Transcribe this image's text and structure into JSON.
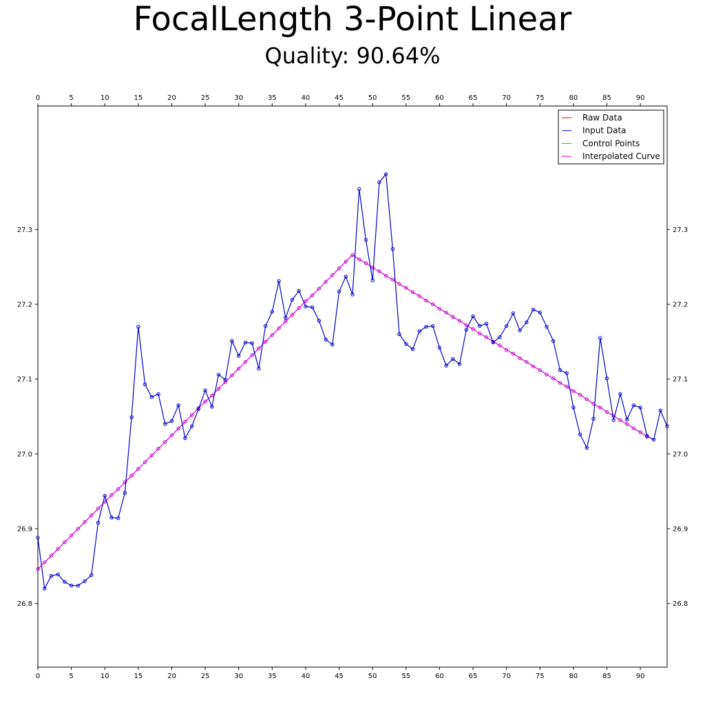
{
  "chart_data": {
    "type": "line",
    "title": "FocalLength 3-Point Linear",
    "subtitle": "Quality: 90.64%",
    "xlim": [
      0,
      94
    ],
    "ylim": [
      26.715,
      27.465
    ],
    "x_ticks": [
      0,
      5,
      10,
      15,
      20,
      25,
      30,
      35,
      40,
      45,
      50,
      55,
      60,
      65,
      70,
      75,
      80,
      85,
      90
    ],
    "y_ticks": [
      26.8,
      26.9,
      27.0,
      27.1,
      27.2,
      27.3
    ],
    "y_tick_labels": [
      "26.8",
      "26.9",
      "27.0",
      "27.1",
      "27.2",
      "27.3"
    ],
    "grid": false,
    "legend": {
      "placement": "top-right",
      "entries": [
        {
          "label": "Raw Data",
          "color": "#cc0000"
        },
        {
          "label": "Input Data",
          "color": "#0000cc"
        },
        {
          "label": "Control Points",
          "color": "#00cc00"
        },
        {
          "label": "Interpolated Curve",
          "color": "#cc00cc"
        }
      ]
    },
    "series": [
      {
        "name": "Input Data",
        "color": "#0000cc",
        "values": [
          26.888,
          26.82,
          26.837,
          26.839,
          26.829,
          26.824,
          26.824,
          26.83,
          26.838,
          26.908,
          26.944,
          26.915,
          26.914,
          26.948,
          27.049,
          27.17,
          27.093,
          27.076,
          27.08,
          27.04,
          27.044,
          27.065,
          27.021,
          27.037,
          27.06,
          27.085,
          27.063,
          27.106,
          27.099,
          27.151,
          27.131,
          27.149,
          27.148,
          27.114,
          27.171,
          27.19,
          27.231,
          27.182,
          27.206,
          27.218,
          27.197,
          27.196,
          27.178,
          27.153,
          27.146,
          27.217,
          27.237,
          27.213,
          27.354,
          27.286,
          27.232,
          27.363,
          27.374,
          27.274,
          27.16,
          27.147,
          27.14,
          27.164,
          27.17,
          27.171,
          27.142,
          27.118,
          27.127,
          27.12,
          27.166,
          27.184,
          27.171,
          27.174,
          27.149,
          27.156,
          27.171,
          27.188,
          27.165,
          27.176,
          27.193,
          27.189,
          27.17,
          27.151,
          27.112,
          27.108,
          27.062,
          27.026,
          27.008,
          27.047,
          27.155,
          27.101,
          27.045,
          27.08,
          27.046,
          27.065,
          27.062,
          27.024,
          27.019,
          27.058,
          27.037
        ]
      },
      {
        "name": "Interpolated Curve",
        "color": "#cc00cc",
        "values": [
          26.846,
          26.855,
          26.864,
          26.873,
          26.882,
          26.891,
          26.9,
          26.909,
          26.918,
          26.927,
          26.936,
          26.945,
          26.953,
          26.962,
          26.971,
          26.98,
          26.989,
          26.998,
          27.007,
          27.016,
          27.025,
          27.034,
          27.043,
          27.052,
          27.061,
          27.07,
          27.078,
          27.087,
          27.096,
          27.105,
          27.114,
          27.123,
          27.132,
          27.141,
          27.15,
          27.159,
          27.168,
          27.177,
          27.186,
          27.195,
          27.204,
          27.212,
          27.221,
          27.23,
          27.239,
          27.248,
          27.257,
          27.266,
          27.26,
          27.255,
          27.249,
          27.244,
          27.238,
          27.233,
          27.227,
          27.222,
          27.216,
          27.211,
          27.205,
          27.2,
          27.194,
          27.189,
          27.183,
          27.178,
          27.172,
          27.167,
          27.161,
          27.156,
          27.15,
          27.145,
          27.139,
          27.134,
          27.128,
          27.123,
          27.117,
          27.112,
          27.106,
          27.101,
          27.095,
          27.09,
          27.084,
          27.079,
          27.073,
          27.067,
          27.062,
          27.056,
          27.051,
          27.045,
          27.04,
          27.034,
          27.029,
          27.023
        ]
      }
    ]
  }
}
